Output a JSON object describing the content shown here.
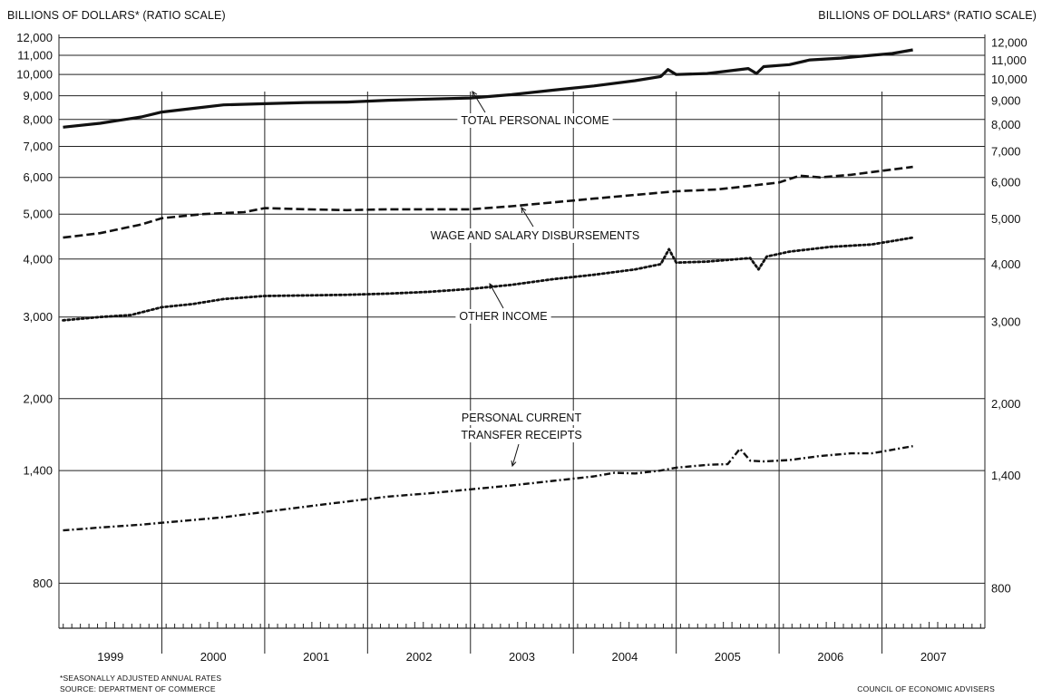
{
  "header": {
    "left_label": "BILLIONS OF DOLLARS* (RATIO SCALE)",
    "right_label": "BILLIONS OF DOLLARS* (RATIO SCALE)"
  },
  "footer": {
    "note": "*SEASONALLY ADJUSTED ANNUAL RATES",
    "source": "SOURCE: DEPARTMENT OF COMMERCE",
    "credit": "COUNCIL OF ECONOMIC ADVISERS"
  },
  "colors": {
    "line": "#111111",
    "grid": "#222222",
    "background": "#ffffff"
  },
  "chart_data": {
    "type": "line",
    "title": "",
    "ylabel": "BILLIONS OF DOLLARS* (RATIO SCALE)",
    "yscale": "log",
    "ylim": [
      640,
      12200
    ],
    "xlim": [
      1999.0,
      2008.0
    ],
    "grid": true,
    "x_categories": [
      "1999",
      "2000",
      "2001",
      "2002",
      "2003",
      "2004",
      "2005",
      "2006",
      "2007"
    ],
    "y_ticks": [
      {
        "value": 800,
        "label": "800"
      },
      {
        "value": 1400,
        "label": "1,400"
      },
      {
        "value": 2000,
        "label": "2,000"
      },
      {
        "value": 3000,
        "label": "3,000"
      },
      {
        "value": 4000,
        "label": "4,000"
      },
      {
        "value": 5000,
        "label": "5,000"
      },
      {
        "value": 6000,
        "label": "6,000"
      },
      {
        "value": 7000,
        "label": "7,000"
      },
      {
        "value": 8000,
        "label": "8,000"
      },
      {
        "value": 9000,
        "label": "9,000"
      },
      {
        "value": 10000,
        "label": "10,000"
      },
      {
        "value": 11000,
        "label": "11,000"
      },
      {
        "value": 12000,
        "label": "12,000"
      }
    ],
    "series": [
      {
        "name": "TOTAL PERSONAL INCOME",
        "style": "solid",
        "points": [
          [
            1999.04,
            7700
          ],
          [
            1999.4,
            7850
          ],
          [
            1999.8,
            8100
          ],
          [
            2000.0,
            8300
          ],
          [
            2000.3,
            8450
          ],
          [
            2000.6,
            8600
          ],
          [
            2001.0,
            8650
          ],
          [
            2001.4,
            8700
          ],
          [
            2001.8,
            8720
          ],
          [
            2002.2,
            8800
          ],
          [
            2002.6,
            8850
          ],
          [
            2003.0,
            8900
          ],
          [
            2003.4,
            9050
          ],
          [
            2003.8,
            9250
          ],
          [
            2004.2,
            9450
          ],
          [
            2004.6,
            9700
          ],
          [
            2004.85,
            9900
          ],
          [
            2004.92,
            10250
          ],
          [
            2005.0,
            10000
          ],
          [
            2005.3,
            10050
          ],
          [
            2005.7,
            10300
          ],
          [
            2005.78,
            10050
          ],
          [
            2005.85,
            10400
          ],
          [
            2006.1,
            10500
          ],
          [
            2006.3,
            10750
          ],
          [
            2006.6,
            10850
          ],
          [
            2006.9,
            11000
          ],
          [
            2007.1,
            11100
          ],
          [
            2007.3,
            11300
          ]
        ]
      },
      {
        "name": "WAGE AND SALARY DISBURSEMENTS",
        "style": "dashed",
        "points": [
          [
            1999.04,
            4450
          ],
          [
            1999.4,
            4550
          ],
          [
            1999.8,
            4750
          ],
          [
            2000.0,
            4900
          ],
          [
            2000.4,
            5000
          ],
          [
            2000.8,
            5050
          ],
          [
            2001.0,
            5150
          ],
          [
            2001.4,
            5120
          ],
          [
            2001.8,
            5100
          ],
          [
            2002.2,
            5120
          ],
          [
            2002.6,
            5120
          ],
          [
            2003.0,
            5120
          ],
          [
            2003.4,
            5200
          ],
          [
            2003.8,
            5300
          ],
          [
            2004.2,
            5400
          ],
          [
            2004.6,
            5500
          ],
          [
            2005.0,
            5600
          ],
          [
            2005.4,
            5650
          ],
          [
            2005.7,
            5750
          ],
          [
            2006.0,
            5850
          ],
          [
            2006.2,
            6050
          ],
          [
            2006.4,
            6000
          ],
          [
            2006.7,
            6080
          ],
          [
            2007.0,
            6200
          ],
          [
            2007.3,
            6320
          ]
        ]
      },
      {
        "name": "OTHER INCOME",
        "style": "dotted",
        "points": [
          [
            1999.04,
            2950
          ],
          [
            1999.4,
            3000
          ],
          [
            1999.7,
            3030
          ],
          [
            2000.0,
            3150
          ],
          [
            2000.3,
            3200
          ],
          [
            2000.6,
            3280
          ],
          [
            2001.0,
            3330
          ],
          [
            2001.4,
            3340
          ],
          [
            2001.8,
            3350
          ],
          [
            2002.2,
            3370
          ],
          [
            2002.6,
            3400
          ],
          [
            2003.0,
            3450
          ],
          [
            2003.4,
            3520
          ],
          [
            2003.8,
            3620
          ],
          [
            2004.2,
            3700
          ],
          [
            2004.6,
            3800
          ],
          [
            2004.85,
            3900
          ],
          [
            2004.93,
            4200
          ],
          [
            2005.0,
            3930
          ],
          [
            2005.3,
            3950
          ],
          [
            2005.6,
            4000
          ],
          [
            2005.72,
            4020
          ],
          [
            2005.8,
            3800
          ],
          [
            2005.88,
            4050
          ],
          [
            2006.1,
            4150
          ],
          [
            2006.5,
            4250
          ],
          [
            2006.9,
            4300
          ],
          [
            2007.3,
            4450
          ]
        ]
      },
      {
        "name": "PERSONAL CURRENT TRANSFER RECEIPTS",
        "style": "dashdot",
        "points": [
          [
            1999.04,
            1040
          ],
          [
            1999.4,
            1055
          ],
          [
            1999.8,
            1070
          ],
          [
            2000.0,
            1080
          ],
          [
            2000.3,
            1095
          ],
          [
            2000.6,
            1110
          ],
          [
            2001.0,
            1140
          ],
          [
            2001.4,
            1170
          ],
          [
            2001.8,
            1200
          ],
          [
            2002.2,
            1230
          ],
          [
            2002.6,
            1250
          ],
          [
            2003.0,
            1275
          ],
          [
            2003.4,
            1300
          ],
          [
            2003.8,
            1330
          ],
          [
            2004.2,
            1360
          ],
          [
            2004.4,
            1385
          ],
          [
            2004.6,
            1380
          ],
          [
            2004.85,
            1400
          ],
          [
            2005.0,
            1420
          ],
          [
            2005.3,
            1440
          ],
          [
            2005.5,
            1445
          ],
          [
            2005.62,
            1560
          ],
          [
            2005.72,
            1470
          ],
          [
            2005.85,
            1465
          ],
          [
            2006.1,
            1475
          ],
          [
            2006.4,
            1505
          ],
          [
            2006.7,
            1525
          ],
          [
            2006.9,
            1525
          ],
          [
            2007.3,
            1580
          ]
        ]
      }
    ],
    "annotations": [
      {
        "text": "TOTAL PERSONAL INCOME",
        "series": 0
      },
      {
        "text": "WAGE AND SALARY DISBURSEMENTS",
        "series": 1
      },
      {
        "text": "OTHER INCOME",
        "series": 2
      },
      {
        "text": "PERSONAL CURRENT",
        "series": 3
      },
      {
        "text": "TRANSFER RECEIPTS",
        "series": 3
      }
    ]
  }
}
